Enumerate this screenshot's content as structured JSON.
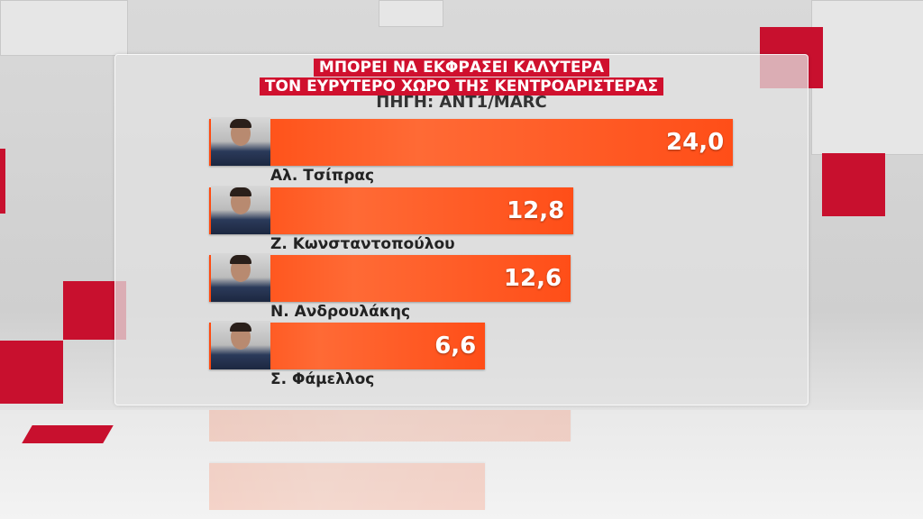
{
  "chart_data": {
    "type": "bar",
    "orientation": "horizontal",
    "title": "ΜΠΟΡΕΙ ΝΑ ΕΚΦΡΑΣΕΙ ΚΑΛΥΤΕΡΑ",
    "subtitle": "ΤΟΝ ΕΥΡΥΤΕΡΟ ΧΩΡΟ ΤΗΣ ΚΕΝΤΡΟΑΡΙΣΤΕΡΑΣ",
    "source": "ΠΗΓΗ: ΑΝΤ1/MARC",
    "categories": [
      "Αλ. Τσίπρας",
      "Ζ. Κωνσταντοπούλου",
      "Ν. Ανδρουλάκης",
      "Σ. Φάμελλος"
    ],
    "values": [
      24.0,
      12.8,
      12.6,
      6.6
    ],
    "labels": [
      "24,0",
      "12,8",
      "12,6",
      "6,6"
    ],
    "bar_color": "#ff5a22",
    "title_bg_color": "#d0102e"
  }
}
